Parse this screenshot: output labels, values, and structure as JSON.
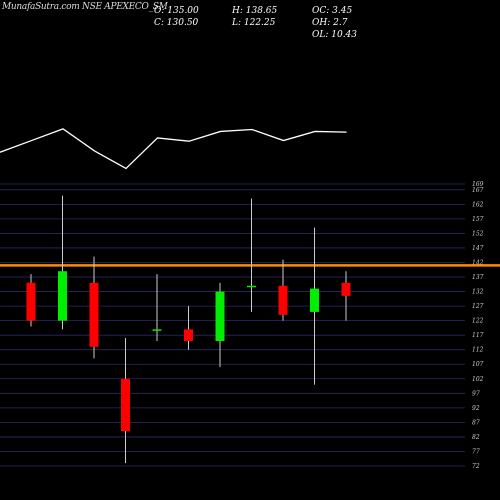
{
  "chart_data": {
    "type": "candlestick",
    "title": "MunafaSutra.com NSE APEXECO_SM",
    "stats": {
      "open": "O: 135.00",
      "high": "H: 138.65",
      "oc": "OC: 3.45",
      "close": "C: 130.50",
      "low": "L: 122.25",
      "oh": "OH: 2.7",
      "ol": "OL: 10.43"
    },
    "y_ticks": [
      169,
      167,
      162,
      157,
      152,
      147,
      142,
      137,
      132,
      127,
      122,
      117,
      112,
      107,
      102,
      97,
      92,
      87,
      82,
      77,
      72
    ],
    "ylim": [
      70,
      170
    ],
    "reference_line": {
      "value": 141,
      "color": "#ff8c00"
    },
    "candles": [
      {
        "open": 135,
        "high": 138,
        "low": 120,
        "close": 122,
        "color": "#ff0000"
      },
      {
        "open": 122,
        "high": 165,
        "low": 119,
        "close": 139,
        "color": "#00ee00"
      },
      {
        "open": 135,
        "high": 144,
        "low": 109,
        "close": 113,
        "color": "#ff0000"
      },
      {
        "open": 102,
        "high": 116,
        "low": 73,
        "close": 84,
        "color": "#ff0000"
      },
      {
        "open": 119,
        "high": 138,
        "low": 115,
        "close": 119,
        "color": "#00ee00"
      },
      {
        "open": 119,
        "high": 127,
        "low": 112,
        "close": 115,
        "color": "#ff0000"
      },
      {
        "open": 115,
        "high": 135,
        "low": 106,
        "close": 132,
        "color": "#00ee00"
      },
      {
        "open": 134,
        "high": 164,
        "low": 125,
        "close": 134,
        "color": "#00ee00"
      },
      {
        "open": 134,
        "high": 143,
        "low": 122,
        "close": 124,
        "color": "#ff0000"
      },
      {
        "open": 125,
        "high": 154,
        "low": 100,
        "close": 133,
        "color": "#00ee00"
      },
      {
        "open": 135,
        "high": 139,
        "low": 122,
        "close": 130.5,
        "color": "#ff0000"
      }
    ],
    "indicator_line": [
      65,
      47,
      29,
      63,
      90,
      43,
      48,
      33,
      30,
      47,
      33,
      34
    ]
  }
}
